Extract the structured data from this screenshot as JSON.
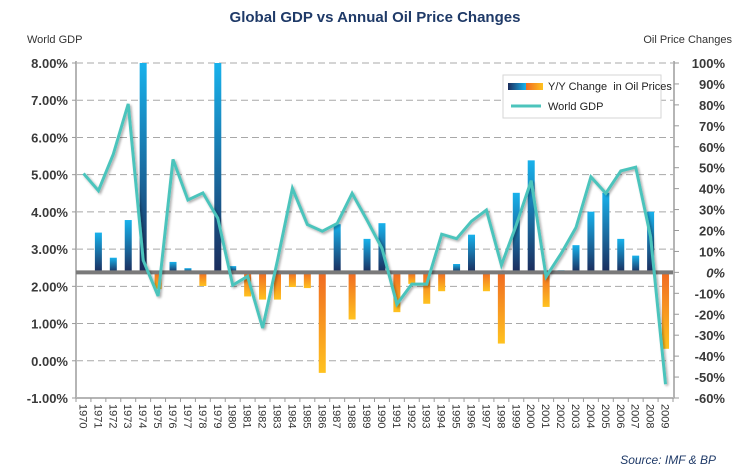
{
  "chart_data": {
    "type": "bar+line",
    "title": "Global GDP vs Annual Oil Price Changes",
    "source": "Source: IMF & BP",
    "categories": [
      "1970",
      "1971",
      "1972",
      "1973",
      "1974",
      "1975",
      "1976",
      "1977",
      "1978",
      "1979",
      "1980",
      "1981",
      "1982",
      "1983",
      "1984",
      "1985",
      "1986",
      "1987",
      "1988",
      "1989",
      "1990",
      "1991",
      "1992",
      "1993",
      "1994",
      "1995",
      "1996",
      "1997",
      "1998",
      "1999",
      "2000",
      "2001",
      "2002",
      "2003",
      "2004",
      "2005",
      "2006",
      "2007",
      "2008",
      "2009"
    ],
    "left_axis": {
      "label": "World GDP",
      "range": [
        -1,
        8
      ],
      "ticks": [
        8,
        7,
        6,
        5,
        4,
        3,
        2,
        1,
        0,
        -1
      ],
      "tick_labels": [
        "8.00%",
        "7.00%",
        "6.00%",
        "5.00%",
        "4.00%",
        "3.00%",
        "2.00%",
        "1.00%",
        "0.00%",
        "-1.00%"
      ]
    },
    "right_axis": {
      "label": "Oil Price Changes",
      "range": [
        -60,
        100
      ],
      "ticks": [
        100,
        90,
        80,
        70,
        60,
        50,
        40,
        30,
        20,
        10,
        0,
        -10,
        -20,
        -30,
        -40,
        -50,
        -60
      ],
      "tick_labels": [
        "100%",
        "90%",
        "80%",
        "70%",
        "60%",
        "50%",
        "40%",
        "30%",
        "20%",
        "10%",
        "0%",
        "-10%",
        "-20%",
        "-30%",
        "-40%",
        "-50%",
        "-60%"
      ]
    },
    "grid": true,
    "legend": {
      "position": "top-right",
      "entries": [
        "Y/Y Change  in Oil Prices",
        "World GDP"
      ]
    },
    "series": [
      {
        "name": "Y/Y Change in Oil Prices",
        "type": "bar",
        "axis": "right",
        "note": "1974 and 1979 bars exceed the axis maximum and are clipped at 100%",
        "values": [
          0,
          19,
          7,
          25,
          100,
          -8,
          5,
          2,
          -6.5,
          100,
          3,
          -11.5,
          -13,
          -13,
          -7,
          -7.5,
          -48,
          23,
          -22.5,
          16,
          23.5,
          -19,
          -5.5,
          -15,
          -9,
          4,
          18,
          -9,
          -34,
          38,
          53.5,
          -16.5,
          1,
          13,
          29,
          38,
          16,
          8,
          29,
          -36.5
        ]
      },
      {
        "name": "World GDP",
        "type": "line",
        "axis": "left",
        "values": [
          5.03,
          4.57,
          5.55,
          6.9,
          2.7,
          1.74,
          5.41,
          4.32,
          4.51,
          3.83,
          2.03,
          2.27,
          0.88,
          2.7,
          4.63,
          3.66,
          3.48,
          3.69,
          4.5,
          3.78,
          3.02,
          1.52,
          2.06,
          2.06,
          3.4,
          3.28,
          3.75,
          4.05,
          2.57,
          3.65,
          4.84,
          2.26,
          2.88,
          3.58,
          4.94,
          4.5,
          5.1,
          5.2,
          3.33,
          -0.63
        ]
      }
    ],
    "colors": {
      "bar_positive_top": "#18b2ec",
      "bar_positive_bottom": "#1b2c5c",
      "bar_negative_top": "#f06a22",
      "bar_negative_bottom": "#ffc21f",
      "line": "#4cc4bc",
      "zero_line": "#7a7a7a",
      "title": "#1f3a68"
    }
  }
}
